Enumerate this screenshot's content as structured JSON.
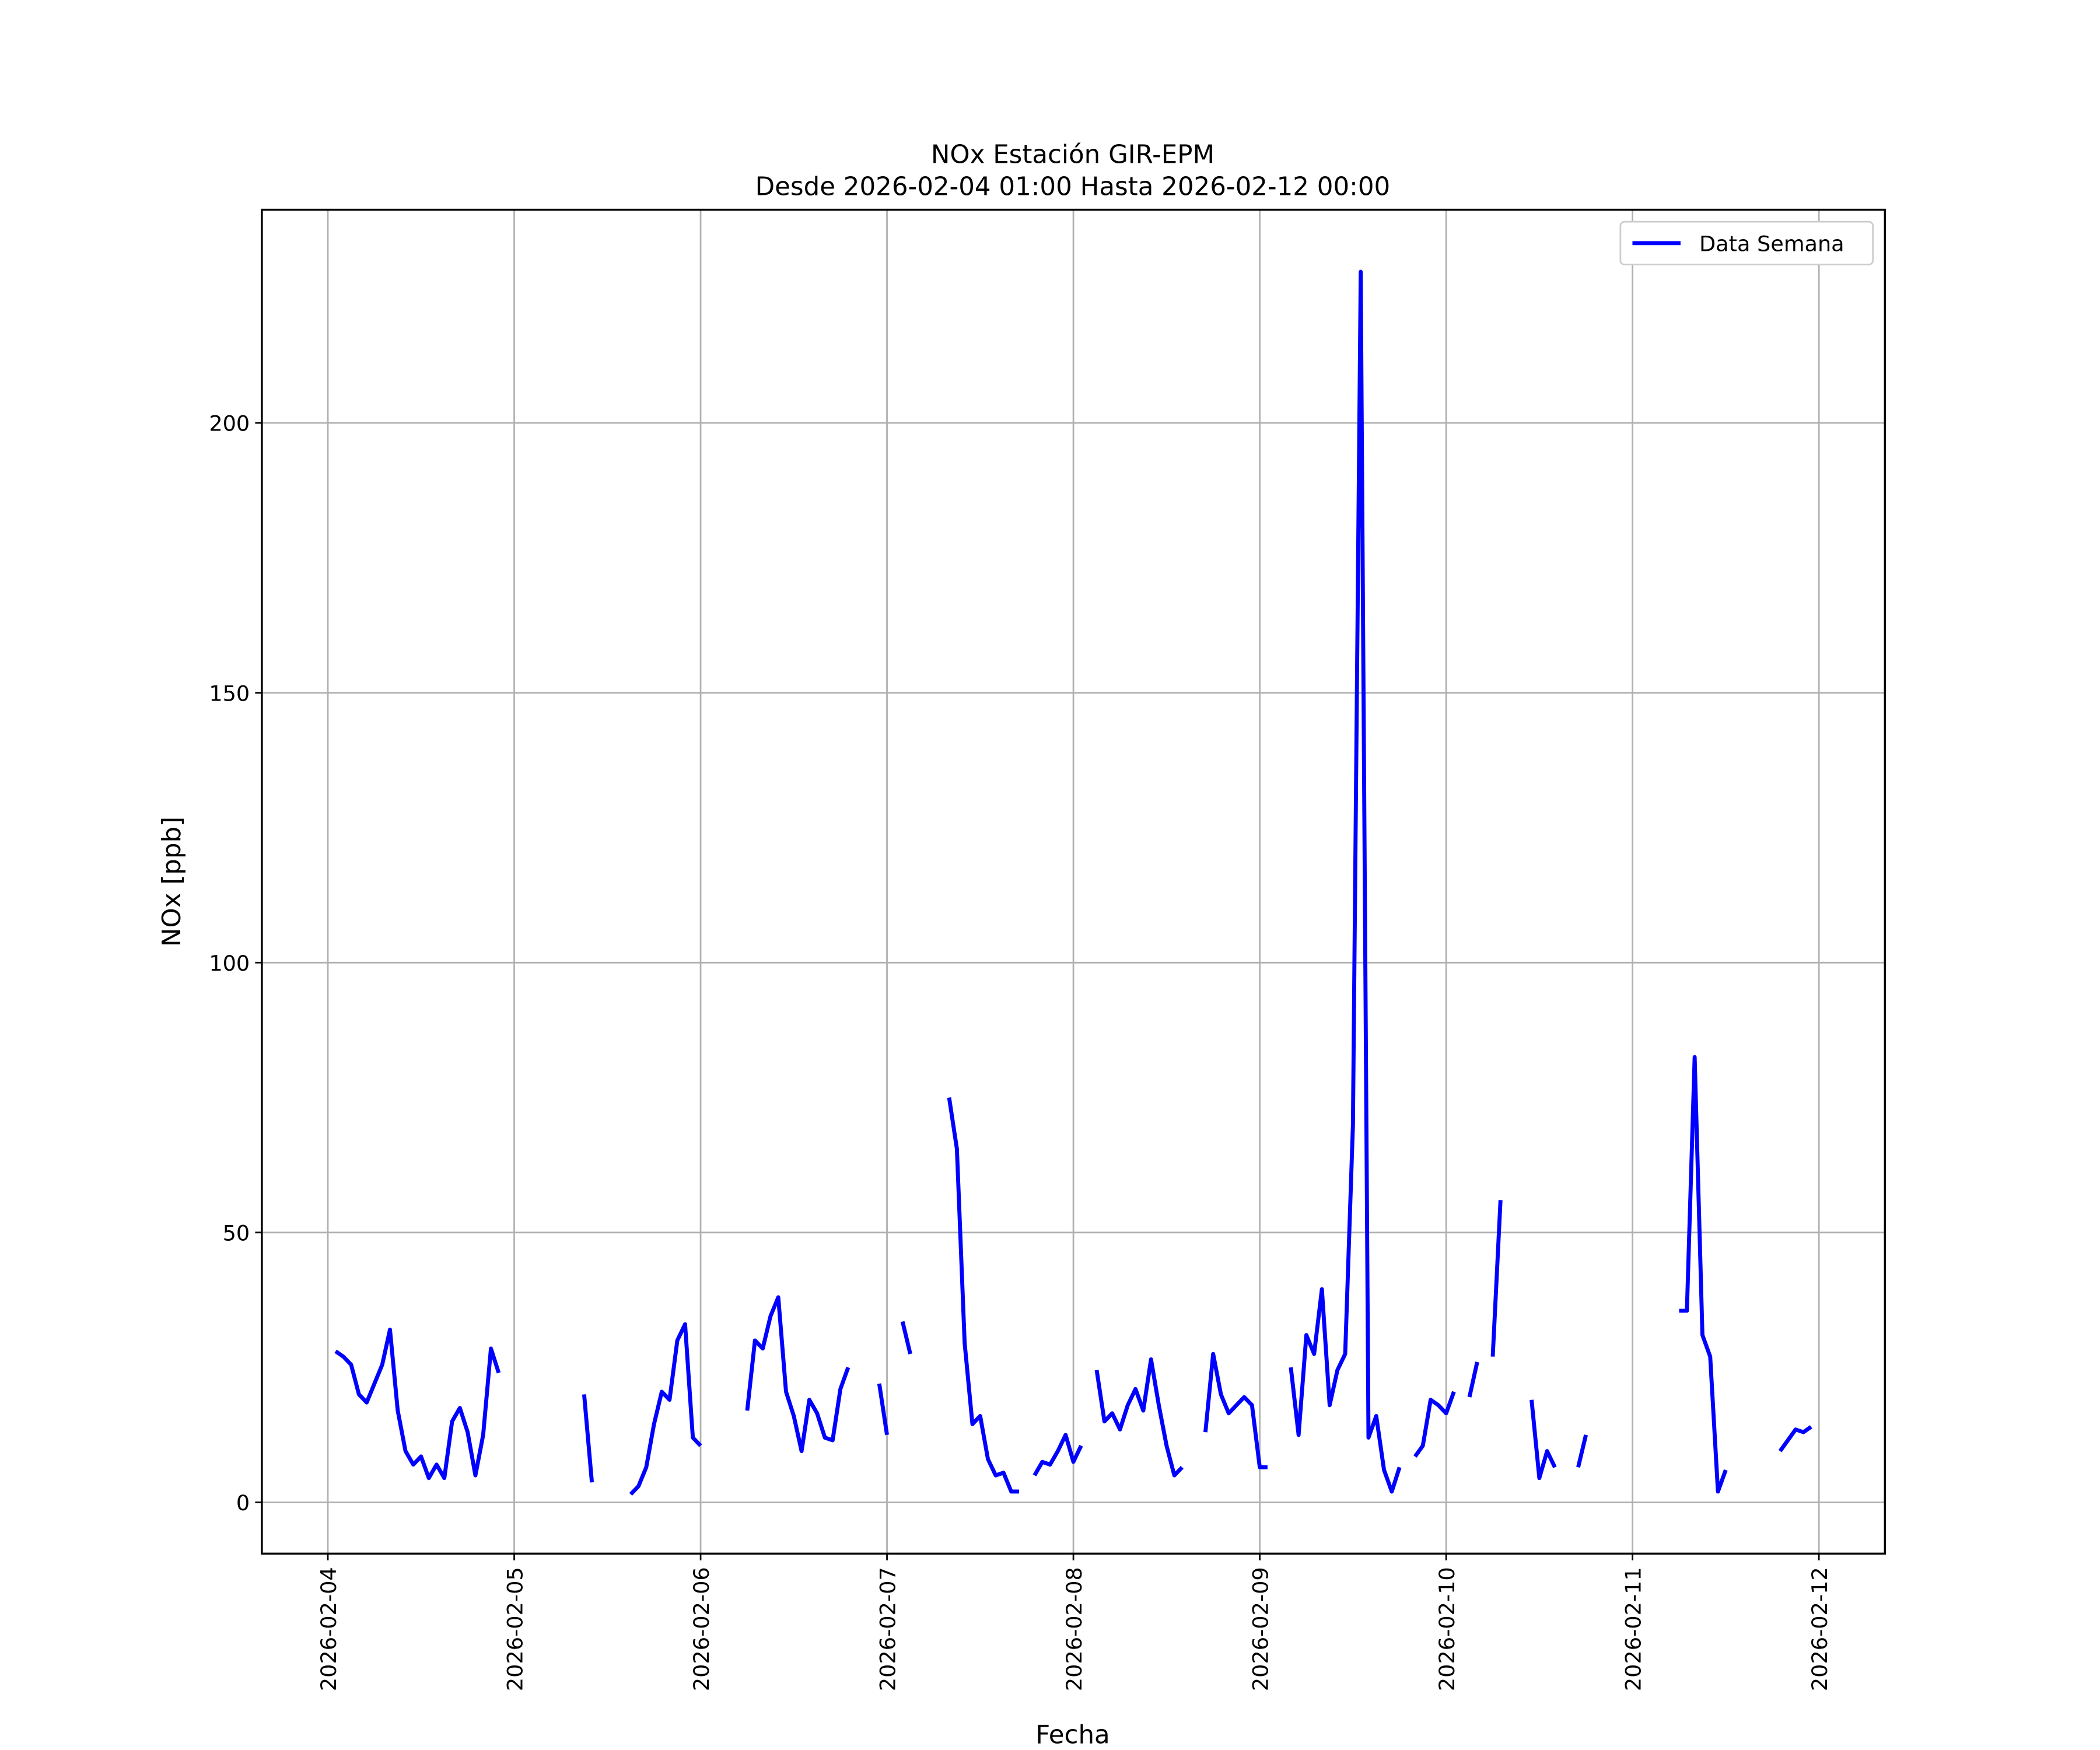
{
  "chart_data": {
    "type": "line",
    "title": "NOx Estación GIR-EPM",
    "subtitle": "Desde 2026-02-04 01:00 Hasta 2026-02-12 00:00",
    "x_label": "Fecha",
    "y_label": "NOx [ppb]",
    "x": [
      "2026-02-04 01:00",
      "2026-02-04 02:00",
      "2026-02-04 03:00",
      "2026-02-04 04:00",
      "2026-02-04 05:00",
      "2026-02-04 06:00",
      "2026-02-04 07:00",
      "2026-02-04 08:00",
      "2026-02-04 09:00",
      "2026-02-04 10:00",
      "2026-02-04 11:00",
      "2026-02-04 12:00",
      "2026-02-04 13:00",
      "2026-02-04 14:00",
      "2026-02-04 15:00",
      "2026-02-04 16:00",
      "2026-02-04 17:00",
      "2026-02-04 18:00",
      "2026-02-04 19:00",
      "2026-02-04 20:00",
      "2026-02-04 21:00",
      "2026-02-04 22:00",
      "2026-02-04 23:00",
      "2026-02-05 00:00",
      "2026-02-05 01:00",
      "2026-02-05 02:00",
      "2026-02-05 03:00",
      "2026-02-05 04:00",
      "2026-02-05 05:00",
      "2026-02-05 06:00",
      "2026-02-05 07:00",
      "2026-02-05 08:00",
      "2026-02-05 09:00",
      "2026-02-05 10:00",
      "2026-02-05 11:00",
      "2026-02-05 12:00",
      "2026-02-05 13:00",
      "2026-02-05 14:00",
      "2026-02-05 15:00",
      "2026-02-05 16:00",
      "2026-02-05 17:00",
      "2026-02-05 18:00",
      "2026-02-05 19:00",
      "2026-02-05 20:00",
      "2026-02-05 21:00",
      "2026-02-05 22:00",
      "2026-02-05 23:00",
      "2026-02-06 00:00",
      "2026-02-06 01:00",
      "2026-02-06 02:00",
      "2026-02-06 03:00",
      "2026-02-06 04:00",
      "2026-02-06 05:00",
      "2026-02-06 06:00",
      "2026-02-06 07:00",
      "2026-02-06 08:00",
      "2026-02-06 09:00",
      "2026-02-06 10:00",
      "2026-02-06 11:00",
      "2026-02-06 12:00",
      "2026-02-06 13:00",
      "2026-02-06 14:00",
      "2026-02-06 15:00",
      "2026-02-06 16:00",
      "2026-02-06 17:00",
      "2026-02-06 18:00",
      "2026-02-06 19:00",
      "2026-02-06 20:00",
      "2026-02-06 21:00",
      "2026-02-06 22:00",
      "2026-02-06 23:00",
      "2026-02-07 00:00",
      "2026-02-07 01:00",
      "2026-02-07 02:00",
      "2026-02-07 03:00",
      "2026-02-07 04:00",
      "2026-02-07 05:00",
      "2026-02-07 06:00",
      "2026-02-07 07:00",
      "2026-02-07 08:00",
      "2026-02-07 09:00",
      "2026-02-07 10:00",
      "2026-02-07 11:00",
      "2026-02-07 12:00",
      "2026-02-07 13:00",
      "2026-02-07 14:00",
      "2026-02-07 15:00",
      "2026-02-07 16:00",
      "2026-02-07 17:00",
      "2026-02-07 18:00",
      "2026-02-07 19:00",
      "2026-02-07 20:00",
      "2026-02-07 21:00",
      "2026-02-07 22:00",
      "2026-02-07 23:00",
      "2026-02-08 00:00",
      "2026-02-08 01:00",
      "2026-02-08 02:00",
      "2026-02-08 03:00",
      "2026-02-08 04:00",
      "2026-02-08 05:00",
      "2026-02-08 06:00",
      "2026-02-08 07:00",
      "2026-02-08 08:00",
      "2026-02-08 09:00",
      "2026-02-08 10:00",
      "2026-02-08 11:00",
      "2026-02-08 12:00",
      "2026-02-08 13:00",
      "2026-02-08 14:00",
      "2026-02-08 15:00",
      "2026-02-08 16:00",
      "2026-02-08 17:00",
      "2026-02-08 18:00",
      "2026-02-08 19:00",
      "2026-02-08 20:00",
      "2026-02-08 21:00",
      "2026-02-08 22:00",
      "2026-02-08 23:00",
      "2026-02-09 00:00",
      "2026-02-09 01:00",
      "2026-02-09 02:00",
      "2026-02-09 03:00",
      "2026-02-09 04:00",
      "2026-02-09 05:00",
      "2026-02-09 06:00",
      "2026-02-09 07:00",
      "2026-02-09 08:00",
      "2026-02-09 09:00",
      "2026-02-09 10:00",
      "2026-02-09 11:00",
      "2026-02-09 12:00",
      "2026-02-09 13:00",
      "2026-02-09 14:00",
      "2026-02-09 15:00",
      "2026-02-09 16:00",
      "2026-02-09 17:00",
      "2026-02-09 18:00",
      "2026-02-09 19:00",
      "2026-02-09 20:00",
      "2026-02-09 21:00",
      "2026-02-09 22:00",
      "2026-02-09 23:00",
      "2026-02-10 00:00",
      "2026-02-10 01:00",
      "2026-02-10 02:00",
      "2026-02-10 03:00",
      "2026-02-10 04:00",
      "2026-02-10 05:00",
      "2026-02-10 06:00",
      "2026-02-10 07:00",
      "2026-02-10 08:00",
      "2026-02-10 09:00",
      "2026-02-10 10:00",
      "2026-02-10 11:00",
      "2026-02-10 12:00",
      "2026-02-10 13:00",
      "2026-02-10 14:00",
      "2026-02-10 15:00",
      "2026-02-10 16:00",
      "2026-02-10 17:00",
      "2026-02-10 18:00",
      "2026-02-10 19:00",
      "2026-02-10 20:00",
      "2026-02-10 21:00",
      "2026-02-10 22:00",
      "2026-02-10 23:00",
      "2026-02-11 00:00",
      "2026-02-11 01:00",
      "2026-02-11 02:00",
      "2026-02-11 03:00",
      "2026-02-11 04:00",
      "2026-02-11 05:00",
      "2026-02-11 06:00",
      "2026-02-11 07:00",
      "2026-02-11 08:00",
      "2026-02-11 09:00",
      "2026-02-11 10:00",
      "2026-02-11 11:00",
      "2026-02-11 12:00",
      "2026-02-11 13:00",
      "2026-02-11 14:00",
      "2026-02-11 15:00",
      "2026-02-11 16:00",
      "2026-02-11 17:00",
      "2026-02-11 18:00",
      "2026-02-11 19:00",
      "2026-02-11 20:00",
      "2026-02-11 21:00",
      "2026-02-11 22:00",
      "2026-02-11 23:00",
      "2026-02-12 00:00"
    ],
    "series": [
      {
        "name": "Data Semana",
        "color": "#0000ff",
        "values": [
          28,
          27,
          25.5,
          20,
          18.5,
          22,
          25.5,
          32,
          17,
          9.5,
          7,
          8.5,
          4.5,
          7,
          4.5,
          15,
          17.5,
          13,
          5,
          12.5,
          28.5,
          24,
          null,
          null,
          null,
          null,
          null,
          null,
          null,
          null,
          null,
          null,
          20,
          3.7,
          null,
          null,
          null,
          null,
          1.5,
          3,
          6.5,
          14.5,
          20.5,
          19,
          30,
          33,
          12,
          10.5,
          null,
          null,
          null,
          null,
          null,
          17,
          30,
          28.5,
          34.5,
          38,
          20.5,
          16,
          9.5,
          19,
          16.5,
          12,
          11.5,
          21,
          25,
          null,
          null,
          null,
          22,
          12.5,
          null,
          33.5,
          27.5,
          null,
          null,
          null,
          null,
          75,
          65.5,
          29.5,
          14.5,
          16,
          8,
          5,
          5.5,
          2,
          2,
          null,
          5,
          7.5,
          7,
          9.5,
          12.5,
          7.5,
          10.5,
          null,
          24.5,
          15,
          16.5,
          13.5,
          18,
          21,
          17,
          26.5,
          18,
          10.5,
          5,
          6.5,
          null,
          null,
          13,
          27.5,
          20,
          16.5,
          18,
          19.5,
          18,
          6.5,
          6.5,
          null,
          null,
          25,
          12.5,
          31,
          27.5,
          39.5,
          18,
          24.5,
          27.5,
          70,
          228,
          12,
          16,
          6,
          2,
          6.5,
          null,
          8.5,
          10.5,
          19,
          18,
          16.5,
          20.5,
          null,
          19.5,
          26,
          null,
          27,
          56,
          null,
          null,
          null,
          19,
          4.5,
          9.5,
          6.5,
          null,
          null,
          6.5,
          12.5,
          null,
          null,
          null,
          null,
          null,
          null,
          null,
          null,
          null,
          null,
          null,
          35.5,
          35.5,
          82.5,
          31,
          27,
          2,
          6,
          null,
          null,
          null,
          null,
          null,
          null,
          9.5,
          11.5,
          13.5,
          13,
          14,
          null
        ]
      }
    ],
    "xlim": [
      "2026-02-03 15:30",
      "2026-02-12 08:30"
    ],
    "xticks": [
      "2026-02-04",
      "2026-02-05",
      "2026-02-06",
      "2026-02-07",
      "2026-02-08",
      "2026-02-09",
      "2026-02-10",
      "2026-02-11",
      "2026-02-12"
    ],
    "ylim": [
      -9.5,
      239.5
    ],
    "yticks": [
      0,
      50,
      100,
      150,
      200
    ],
    "grid": true,
    "legend": "upper right"
  }
}
